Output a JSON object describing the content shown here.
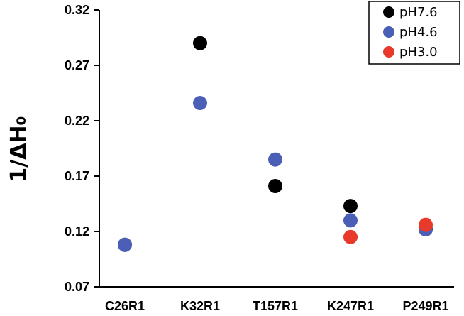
{
  "chart_data": {
    "type": "scatter",
    "ylabel": "1/ΔH₀",
    "ylim": [
      0.07,
      0.32
    ],
    "yticks": [
      "0.07",
      "0.12",
      "0.17",
      "0.22",
      "0.27",
      "0.32"
    ],
    "categories": [
      "C26R1",
      "K32R1",
      "T157R1",
      "K247R1",
      "P249R1"
    ],
    "legend_position": "top-right",
    "grid": false,
    "series": [
      {
        "name": "pH7.6",
        "color": "#000000",
        "values": [
          0.108,
          0.29,
          0.161,
          0.143,
          0.122
        ]
      },
      {
        "name": "pH4.6",
        "color": "#4a5fb5",
        "values": [
          0.108,
          0.236,
          0.185,
          0.13,
          0.122
        ]
      },
      {
        "name": "pH3.0",
        "color": "#e8392a",
        "values": [
          null,
          null,
          null,
          0.115,
          0.126
        ]
      }
    ]
  }
}
